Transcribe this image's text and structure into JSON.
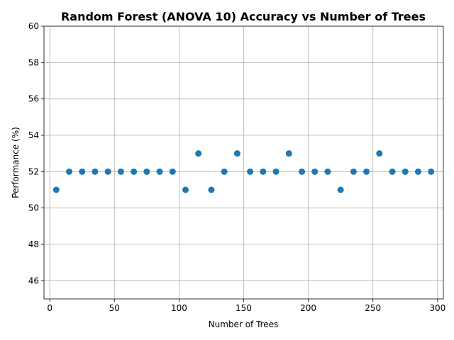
{
  "chart_data": {
    "type": "scatter",
    "title": "Random Forest (ANOVA 10) Accuracy vs Number of Trees",
    "xlabel": "Number of Trees",
    "ylabel": "Performance (%)",
    "xlim": [
      -4.5,
      304.5
    ],
    "ylim": [
      45,
      60
    ],
    "xticks": [
      0,
      50,
      100,
      150,
      200,
      250,
      300
    ],
    "yticks": [
      46,
      48,
      50,
      52,
      54,
      56,
      58,
      60
    ],
    "grid": true,
    "marker_color": "#1f77b4",
    "points": {
      "x": [
        5,
        15,
        25,
        35,
        45,
        55,
        65,
        75,
        85,
        95,
        105,
        115,
        125,
        135,
        145,
        155,
        165,
        175,
        185,
        195,
        205,
        215,
        225,
        235,
        245,
        255,
        265,
        275,
        285,
        295
      ],
      "y": [
        51,
        52,
        52,
        52,
        52,
        52,
        52,
        52,
        52,
        52,
        51,
        53,
        51,
        52,
        53,
        52,
        52,
        52,
        53,
        52,
        52,
        52,
        51,
        52,
        52,
        53,
        52,
        52,
        52,
        52
      ]
    }
  }
}
